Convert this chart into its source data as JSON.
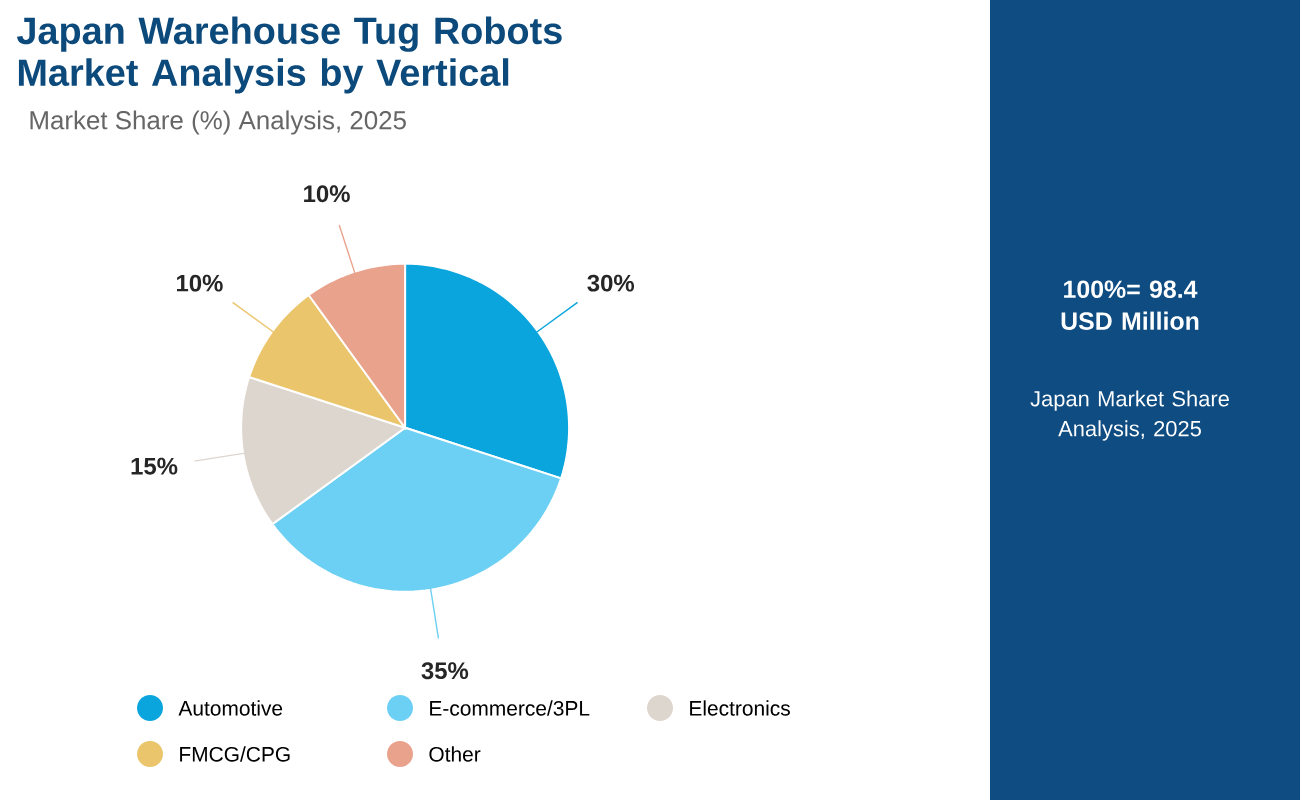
{
  "chart_data": {
    "type": "pie",
    "title": "Japan Warehouse Tug Robots Market Analysis by Vertical",
    "subtitle": "Market Share (%) Analysis, 2025",
    "categories": [
      "Automotive",
      "E-commerce/3PL",
      "Electronics",
      "FMCG/CPG",
      "Other"
    ],
    "values": [
      30,
      35,
      15,
      10,
      10
    ],
    "value_labels": [
      "30%",
      "35%",
      "15%",
      "10%",
      "10%"
    ],
    "colors": [
      "#0aa5dc",
      "#6ccff4",
      "#ddd6ce",
      "#ebc56c",
      "#e9a28c"
    ],
    "legend": "bottom",
    "annotations": [
      "100%= 98.4 USD Million",
      "Japan Market Share Analysis, 2025"
    ]
  }
}
